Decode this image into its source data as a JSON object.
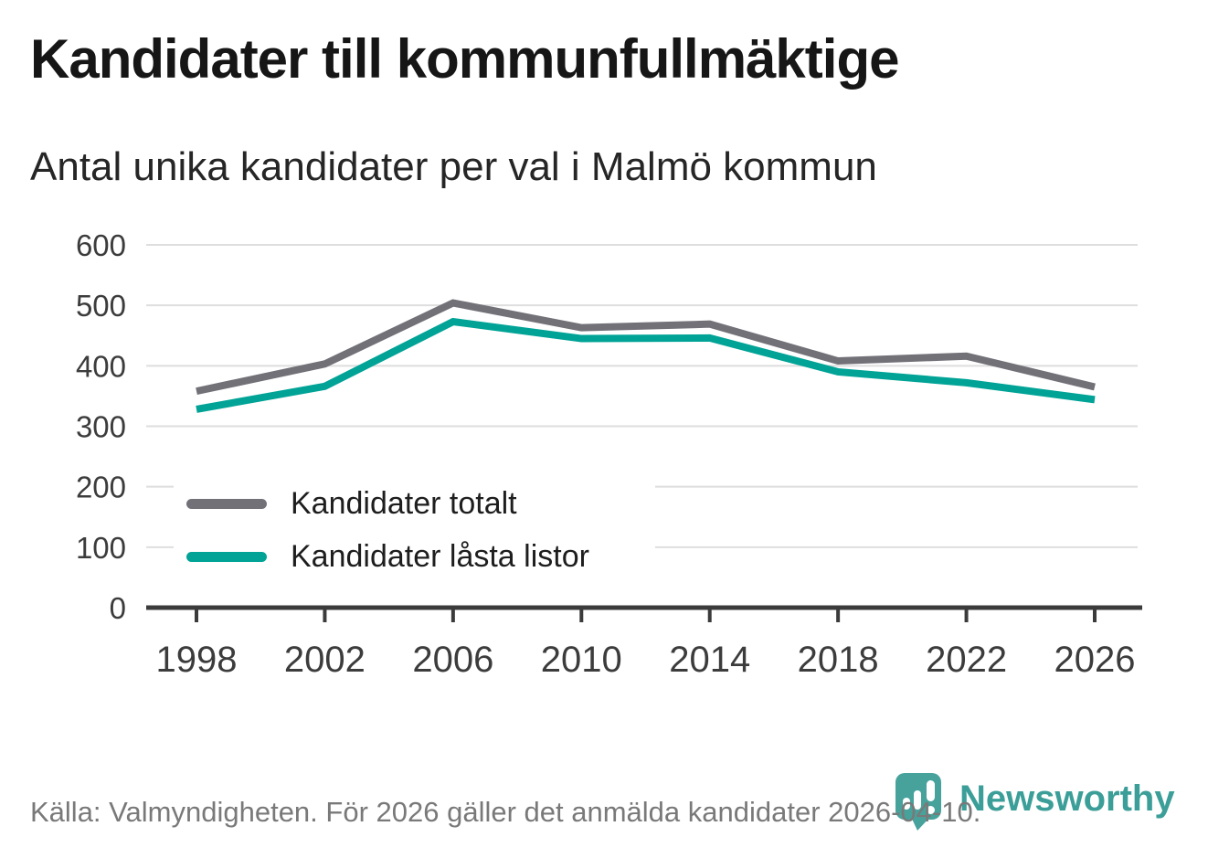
{
  "chart_data": {
    "type": "line",
    "title": "Kandidater till kommunfullmäktige",
    "subtitle": "Antal unika kandidater per val i Malmö kommun",
    "x": [
      "1998",
      "2002",
      "2006",
      "2010",
      "2014",
      "2018",
      "2022",
      "2026"
    ],
    "series": [
      {
        "name": "Kandidater totalt",
        "color": "#737178",
        "values": [
          358,
          403,
          504,
          463,
          469,
          408,
          416,
          365
        ]
      },
      {
        "name": "Kandidater låsta listor",
        "color": "#00A396",
        "values": [
          328,
          366,
          473,
          445,
          446,
          390,
          372,
          344
        ]
      }
    ],
    "xlabel": "",
    "ylabel": "",
    "ylim": [
      0,
      600
    ],
    "yticks": [
      0,
      100,
      200,
      300,
      400,
      500,
      600
    ],
    "grid": "horizontal",
    "legend_position": "inside-left"
  },
  "footer": {
    "source": "Källa: Valmyndigheten. För 2026 gäller det anmälda kandidater 2026-04-10."
  },
  "branding": {
    "name": "Newsworthy",
    "logo_color": "#47A29C",
    "text_color": "#3C9E98"
  },
  "theme": {
    "grid": "#DEDEDE",
    "axis": "#3B3B3B",
    "axis_text": "#3C3C3C",
    "title_color": "#161616",
    "muted_text": "#797979"
  }
}
